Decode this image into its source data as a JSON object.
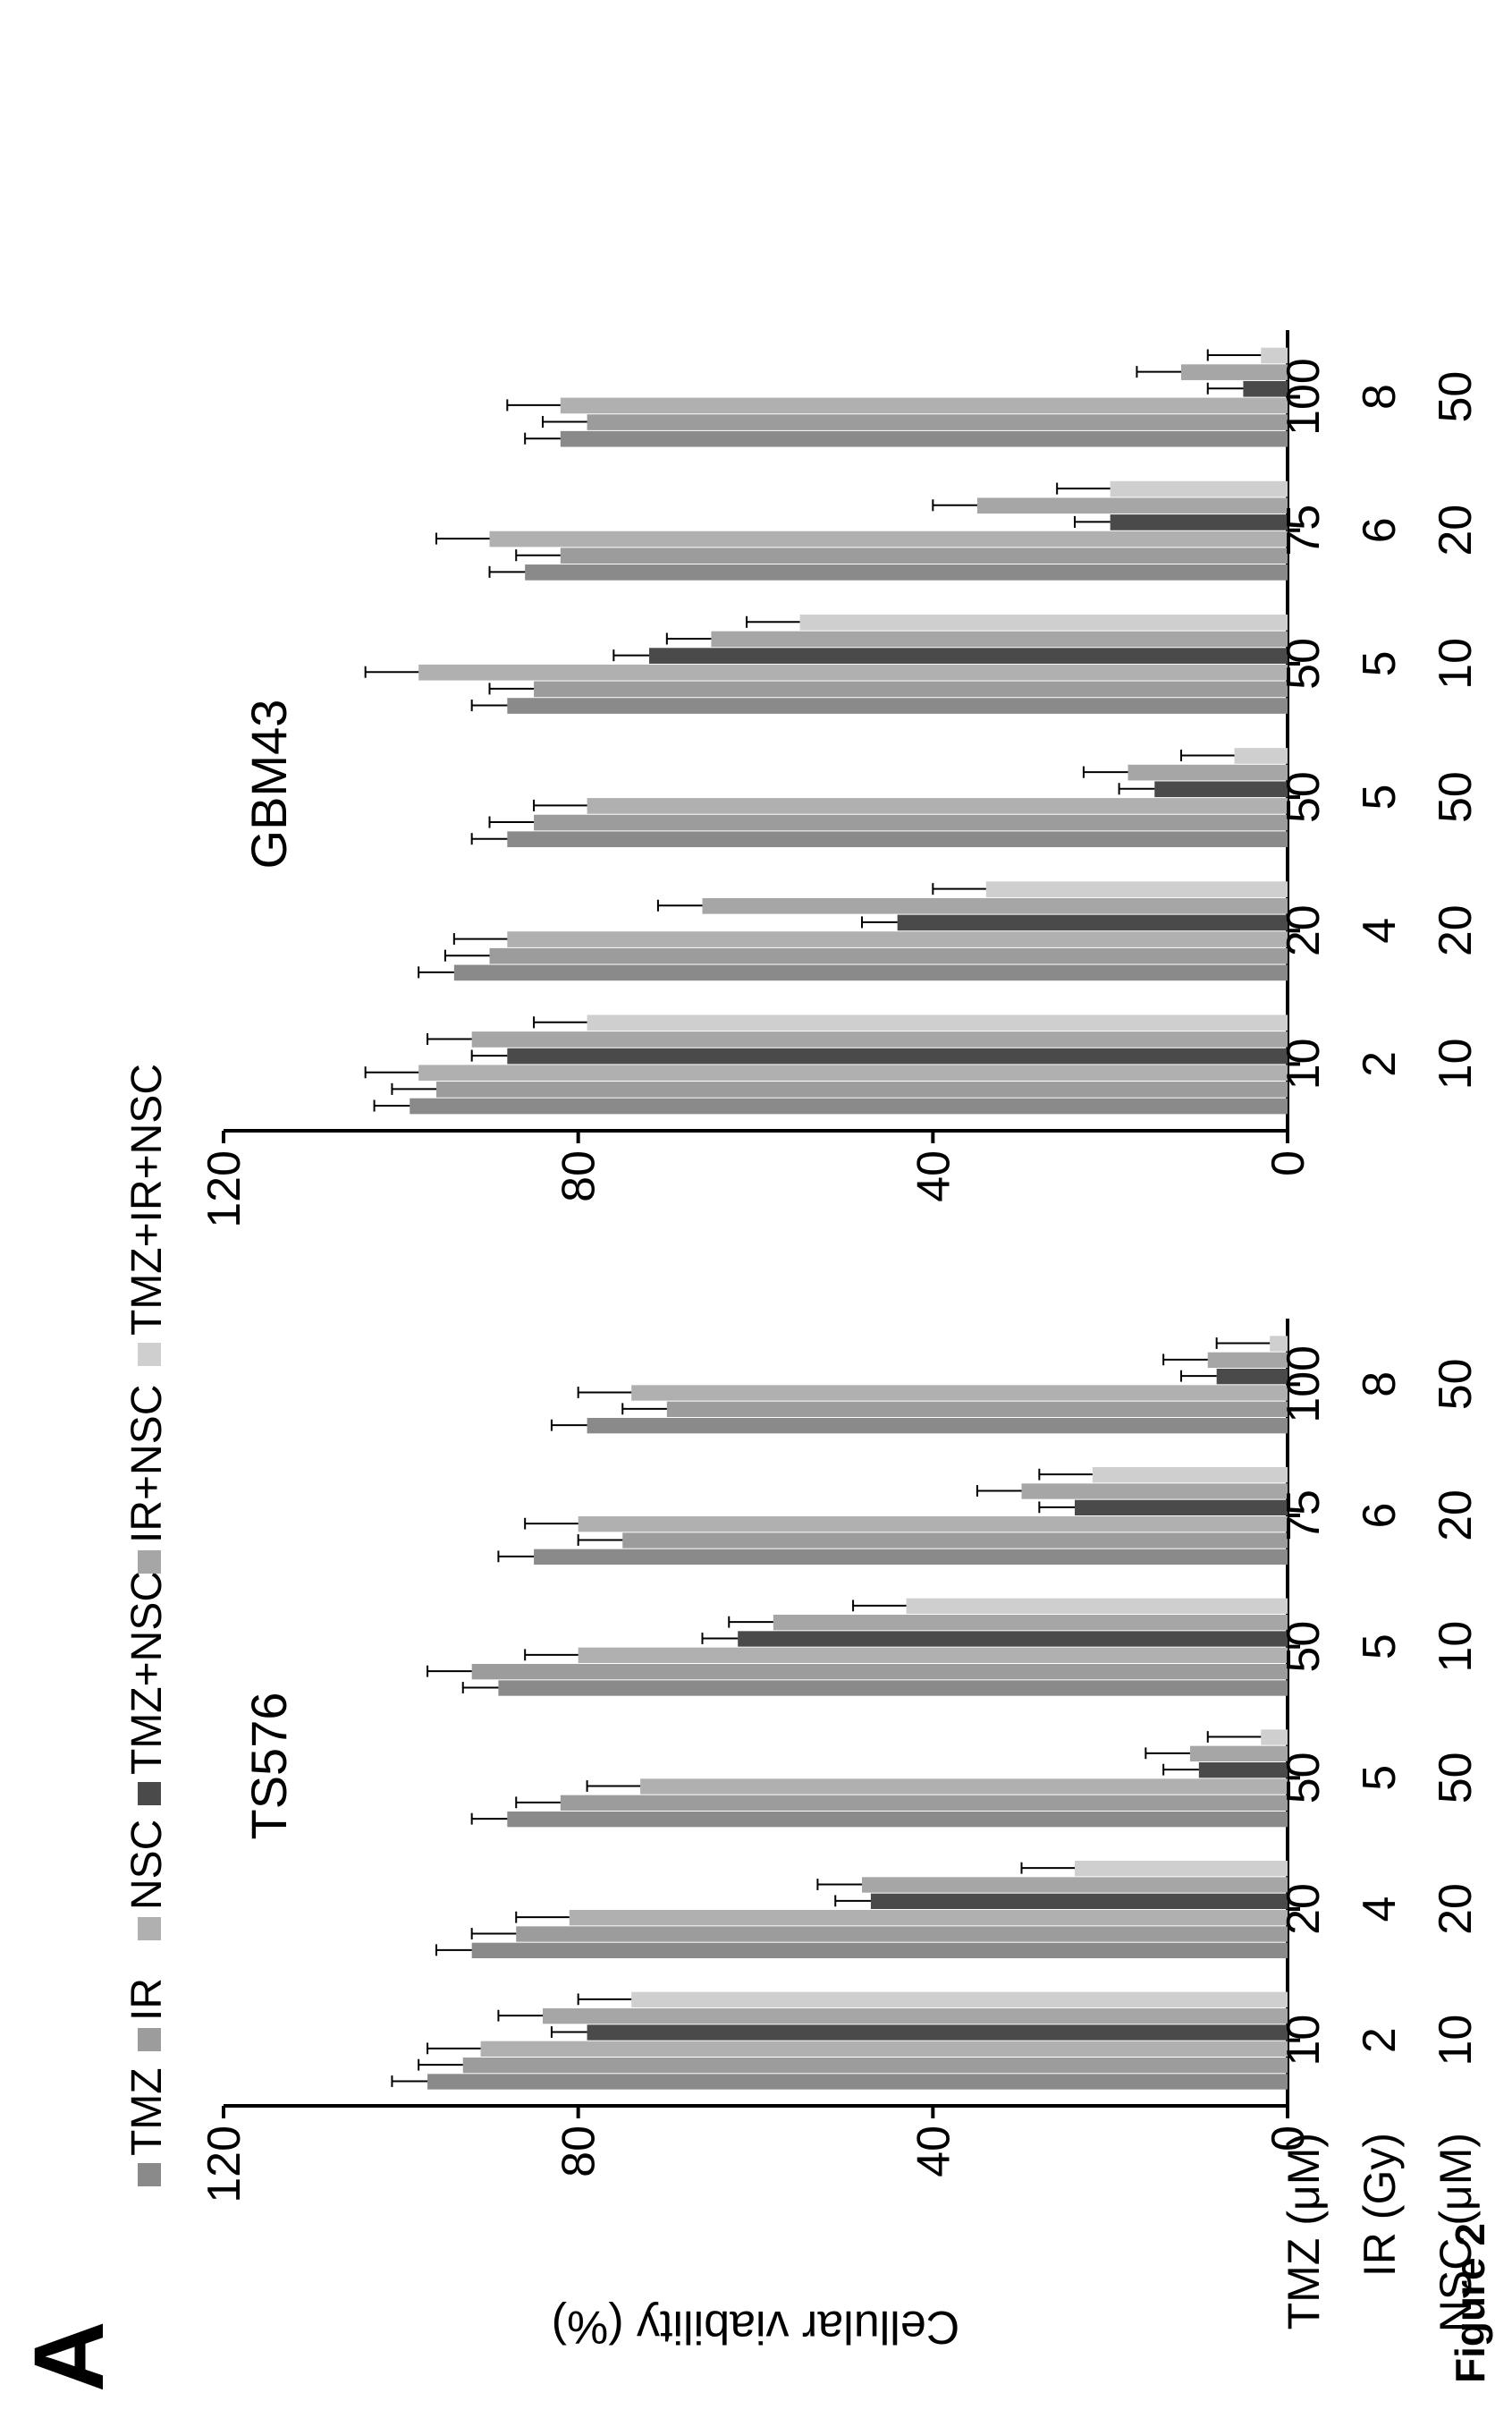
{
  "panel_letter": "A",
  "figure_label": "Figure 2",
  "legend": [
    {
      "name": "TMZ",
      "color": "#8a8a8a"
    },
    {
      "name": "IR",
      "color": "#9c9c9c"
    },
    {
      "name": "NSC",
      "color": "#b0b0b0"
    },
    {
      "name": "TMZ+NSC",
      "color": "#4a4a4a"
    },
    {
      "name": "IR+NSC",
      "color": "#a6a6a6"
    },
    {
      "name": "TMZ+IR+NSC",
      "color": "#cfcfcf"
    }
  ],
  "row_labels": [
    "TMZ (μM)",
    "IR (Gy)",
    "NSC (μM)"
  ],
  "chart_data": [
    {
      "type": "bar",
      "title": "TS576",
      "ylabel": "Cellular viability (%)",
      "ylim": [
        0,
        120
      ],
      "yticks": [
        0,
        40,
        80,
        120
      ],
      "categories": [
        [
          "10",
          "2",
          "10"
        ],
        [
          "20",
          "4",
          "20"
        ],
        [
          "50",
          "5",
          "50"
        ],
        [
          "50",
          "5",
          "10"
        ],
        [
          "75",
          "6",
          "20"
        ],
        [
          "100",
          "8",
          "50"
        ]
      ],
      "series": [
        {
          "name": "TMZ",
          "values": [
            97,
            92,
            88,
            89,
            85,
            79
          ]
        },
        {
          "name": "IR",
          "values": [
            93,
            87,
            82,
            92,
            75,
            70
          ]
        },
        {
          "name": "NSC",
          "values": [
            91,
            81,
            73,
            80,
            80,
            74
          ]
        },
        {
          "name": "TMZ+NSC",
          "values": [
            79,
            47,
            10,
            62,
            24,
            8
          ]
        },
        {
          "name": "IR+NSC",
          "values": [
            84,
            48,
            11,
            58,
            30,
            9
          ]
        },
        {
          "name": "TMZ+IR+NSC",
          "values": [
            74,
            24,
            3,
            43,
            22,
            2
          ]
        }
      ]
    },
    {
      "type": "bar",
      "title": "GBM43",
      "ylabel": "",
      "ylim": [
        0,
        120
      ],
      "yticks": [
        0,
        40,
        80,
        120
      ],
      "categories": [
        [
          "10",
          "2",
          "10"
        ],
        [
          "20",
          "4",
          "20"
        ],
        [
          "50",
          "5",
          "50"
        ],
        [
          "50",
          "5",
          "10"
        ],
        [
          "75",
          "6",
          "20"
        ],
        [
          "100",
          "8",
          "50"
        ]
      ],
      "series": [
        {
          "name": "TMZ",
          "values": [
            99,
            94,
            88,
            88,
            86,
            82
          ]
        },
        {
          "name": "IR",
          "values": [
            96,
            90,
            85,
            85,
            82,
            79
          ]
        },
        {
          "name": "NSC",
          "values": [
            98,
            88,
            79,
            98,
            90,
            82
          ]
        },
        {
          "name": "TMZ+NSC",
          "values": [
            88,
            44,
            15,
            72,
            20,
            5
          ]
        },
        {
          "name": "IR+NSC",
          "values": [
            92,
            66,
            18,
            65,
            35,
            12
          ]
        },
        {
          "name": "TMZ+IR+NSC",
          "values": [
            79,
            34,
            6,
            55,
            20,
            3
          ]
        }
      ]
    }
  ]
}
